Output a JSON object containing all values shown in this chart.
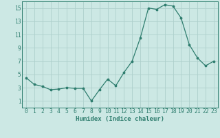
{
  "x": [
    0,
    1,
    2,
    3,
    4,
    5,
    6,
    7,
    8,
    9,
    10,
    11,
    12,
    13,
    14,
    15,
    16,
    17,
    18,
    19,
    20,
    21,
    22,
    23
  ],
  "y": [
    4.5,
    3.5,
    3.2,
    2.7,
    2.8,
    3.0,
    2.9,
    2.9,
    1.0,
    2.7,
    4.3,
    3.3,
    5.3,
    7.0,
    10.5,
    15.0,
    14.8,
    15.5,
    15.3,
    13.5,
    9.5,
    7.5,
    6.3,
    7.0
  ],
  "xlabel": "Humidex (Indice chaleur)",
  "ylim": [
    0,
    16
  ],
  "xlim": [
    -0.5,
    23.5
  ],
  "yticks": [
    1,
    3,
    5,
    7,
    9,
    11,
    13,
    15
  ],
  "xticks": [
    0,
    1,
    2,
    3,
    4,
    5,
    6,
    7,
    8,
    9,
    10,
    11,
    12,
    13,
    14,
    15,
    16,
    17,
    18,
    19,
    20,
    21,
    22,
    23
  ],
  "line_color": "#2e7d6e",
  "marker_color": "#2e7d6e",
  "bg_color": "#cce8e4",
  "grid_color": "#aed0cc",
  "axes_color": "#2e7d6e",
  "xlabel_fontsize": 6.5,
  "tick_fontsize": 5.8,
  "fig_width": 3.2,
  "fig_height": 2.0,
  "dpi": 100
}
